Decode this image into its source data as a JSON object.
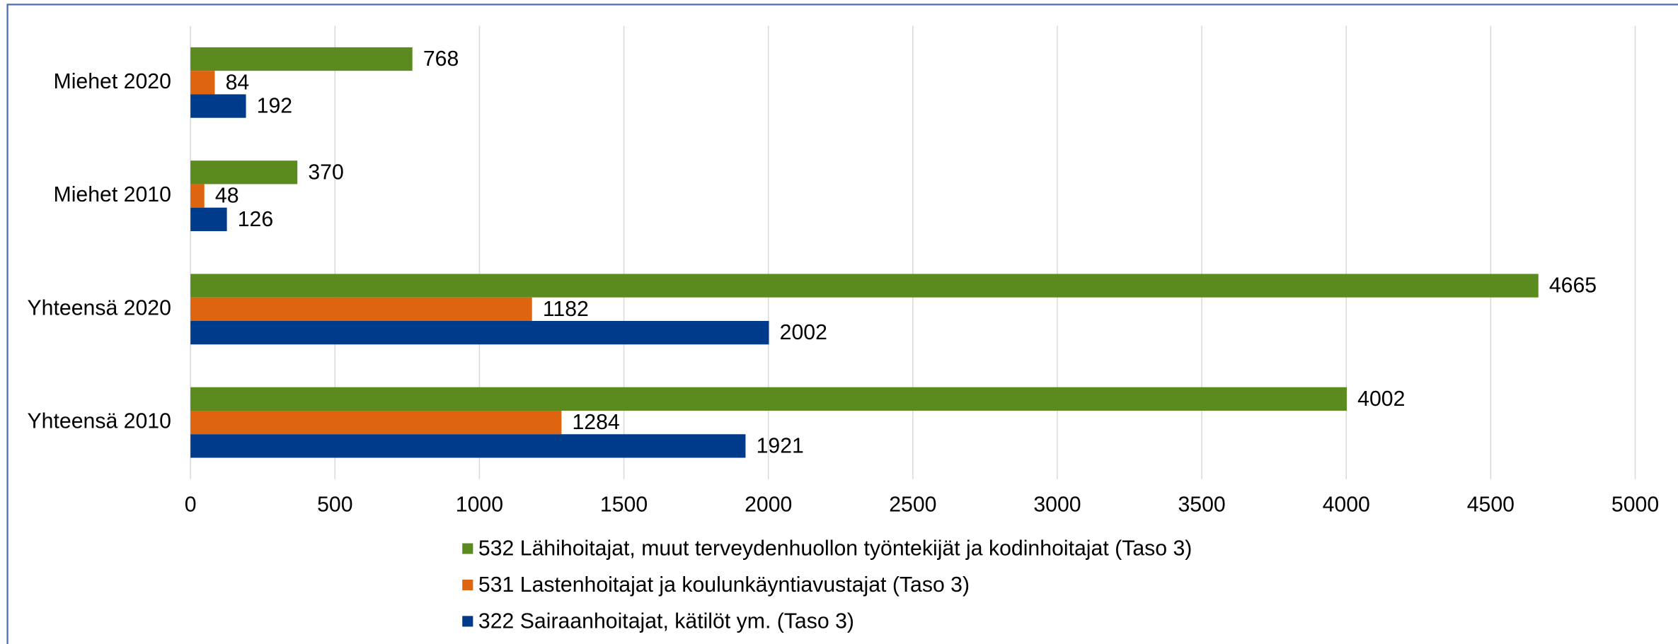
{
  "chart_data": {
    "type": "hbar",
    "categories": [
      "Miehet 2020",
      "Miehet 2010",
      "Yhteensä 2020",
      "Yhteensä 2010"
    ],
    "series": [
      {
        "name": "532 Lähihoitajat, muut terveydenhuollon työntekijät ja kodinhoitajat (Taso 3)",
        "color": "#5b8a1f",
        "values": [
          768,
          370,
          4665,
          4002
        ]
      },
      {
        "name": "531 Lastenhoitajat ja koulunkäyntiavustajat (Taso 3)",
        "color": "#de6410",
        "values": [
          84,
          48,
          1182,
          1284
        ]
      },
      {
        "name": "322 Sairaanhoitajat, kätilöt ym. (Taso 3)",
        "color": "#003a8a",
        "values": [
          192,
          126,
          2002,
          1921
        ]
      }
    ],
    "xlim": [
      0,
      5000
    ],
    "xticks": [
      0,
      500,
      1000,
      1500,
      2000,
      2500,
      3000,
      3500,
      4000,
      4500,
      5000
    ],
    "grid": true,
    "legend": "bottom"
  }
}
